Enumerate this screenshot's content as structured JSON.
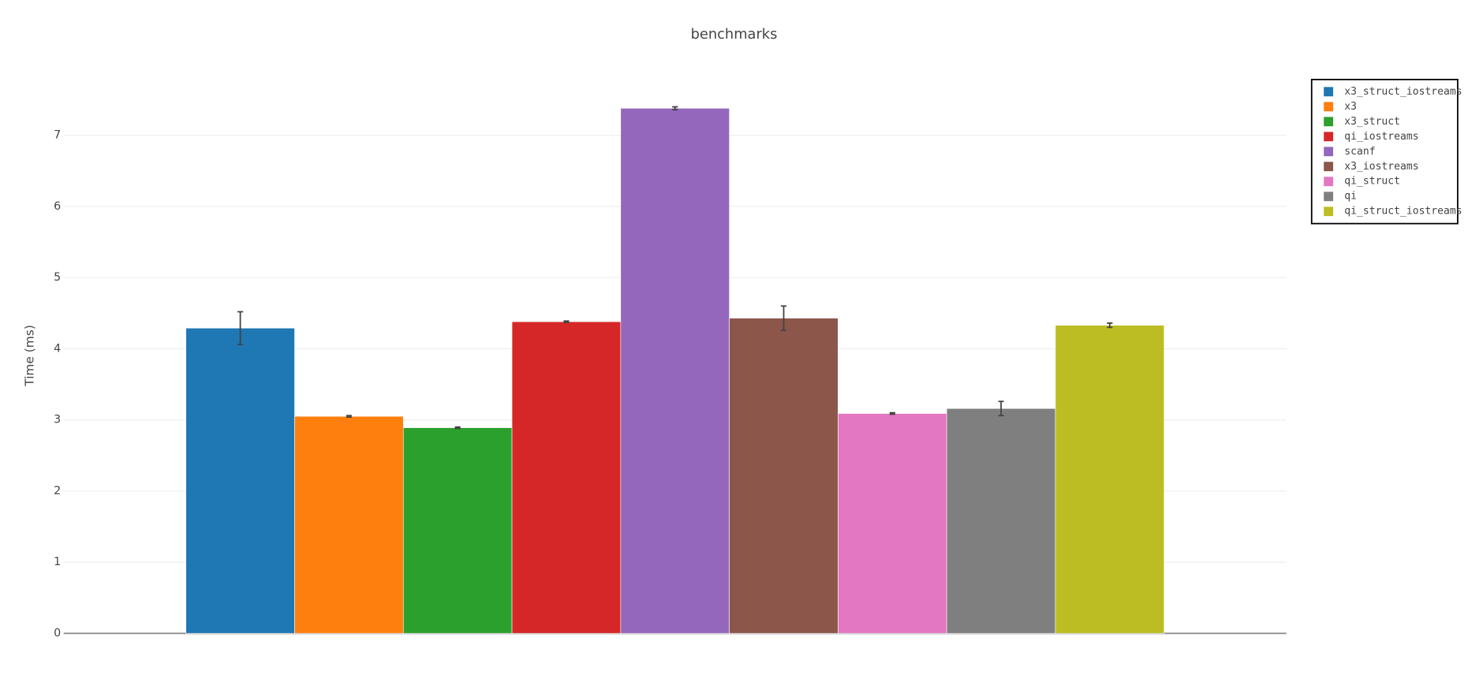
{
  "chart_data": {
    "type": "bar",
    "title": "benchmarks",
    "y_label": "Time (ms)",
    "categories": [
      null
    ],
    "series": [
      {
        "name": "x3_struct_iostreams",
        "color": "#1f77b4",
        "values": [
          4.29
        ],
        "errors": [
          0.23
        ]
      },
      {
        "name": "x3",
        "color": "#ff7f0e",
        "values": [
          3.05
        ],
        "errors": [
          0.01
        ]
      },
      {
        "name": "x3_struct",
        "color": "#2ca02c",
        "values": [
          2.89
        ],
        "errors": [
          0.01
        ]
      },
      {
        "name": "qi_iostreams",
        "color": "#d62728",
        "values": [
          4.38
        ],
        "errors": [
          0.01
        ]
      },
      {
        "name": "scanf",
        "color": "#9467bd",
        "values": [
          7.38
        ],
        "errors": [
          0.02
        ]
      },
      {
        "name": "x3_iostreams",
        "color": "#8c564b",
        "values": [
          4.43
        ],
        "errors": [
          0.17
        ]
      },
      {
        "name": "qi_struct",
        "color": "#e377c2",
        "values": [
          3.09
        ],
        "errors": [
          0.01
        ]
      },
      {
        "name": "qi",
        "color": "#7f7f7f",
        "values": [
          3.16
        ],
        "errors": [
          0.1
        ]
      },
      {
        "name": "qi_struct_iostreams",
        "color": "#bcbd22",
        "values": [
          4.33
        ],
        "errors": [
          0.03
        ]
      }
    ],
    "ylim": [
      0,
      7.85
    ],
    "yticks": [
      0,
      1,
      2,
      3,
      4,
      5,
      6,
      7
    ],
    "grid": true,
    "legend": "right"
  }
}
